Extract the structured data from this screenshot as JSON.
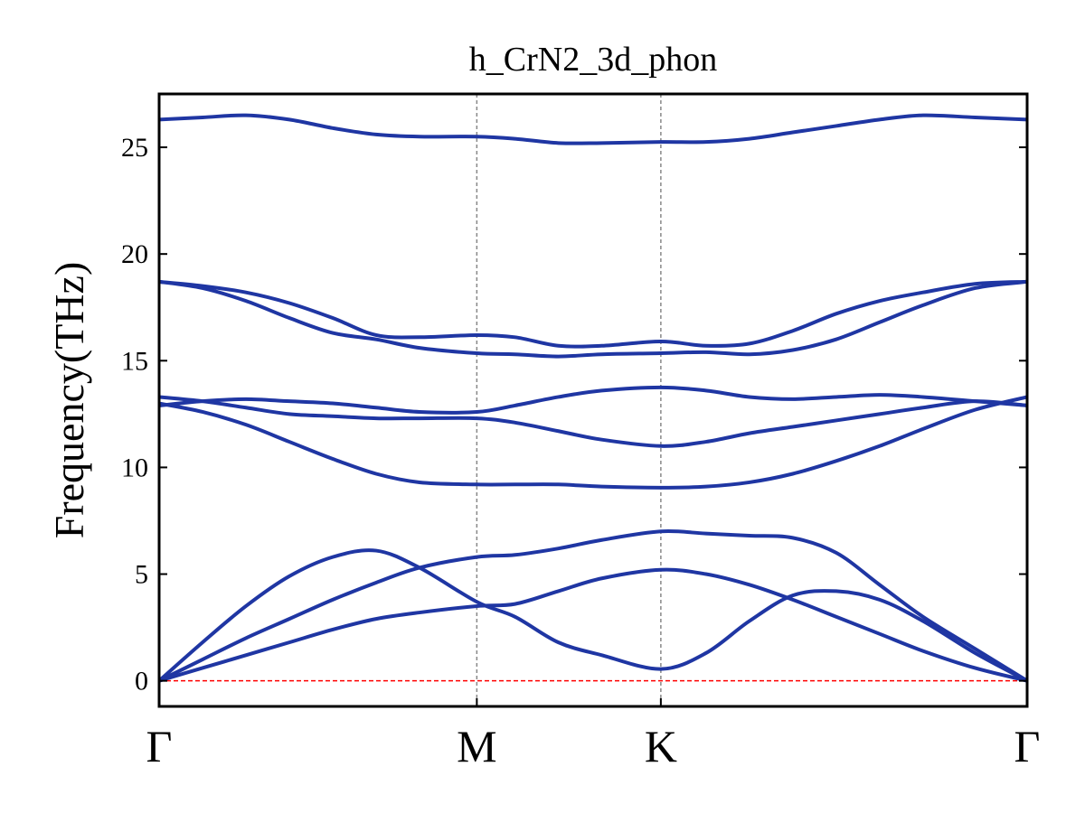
{
  "chart_data": {
    "type": "line",
    "title": "h_CrN2_3d_phon",
    "xlabel": "",
    "ylabel": "Frequency(THz)",
    "ylim": [
      -1.2,
      27.5
    ],
    "xlim": [
      0,
      1
    ],
    "grid": false,
    "legend": "none",
    "colors": {
      "band": "#1f36a3",
      "zero_line": "#ff0000",
      "kpoint_line": "#888888"
    },
    "kpoints": [
      {
        "label": "Γ",
        "x": 0
      },
      {
        "label": "M",
        "x": 0.366
      },
      {
        "label": "K",
        "x": 0.578
      },
      {
        "label": "Γ",
        "x": 1
      }
    ],
    "yticks": [
      0,
      5,
      10,
      15,
      20,
      25
    ],
    "zero_line": 0,
    "x": [
      0,
      0.05,
      0.1,
      0.15,
      0.2,
      0.25,
      0.3,
      0.366,
      0.41,
      0.46,
      0.51,
      0.578,
      0.63,
      0.68,
      0.73,
      0.78,
      0.83,
      0.88,
      0.94,
      1
    ],
    "series": [
      {
        "values": [
          0,
          0.6,
          1.2,
          1.8,
          2.4,
          2.9,
          3.2,
          3.5,
          3.6,
          4.2,
          4.8,
          5.2,
          5.0,
          4.5,
          3.8,
          3.0,
          2.2,
          1.4,
          0.6,
          0
        ]
      },
      {
        "values": [
          0,
          1.0,
          2.0,
          2.9,
          3.8,
          4.6,
          5.3,
          5.8,
          5.9,
          6.2,
          6.6,
          7.0,
          6.9,
          6.8,
          6.7,
          6.0,
          4.5,
          3.0,
          1.5,
          0
        ]
      },
      {
        "values": [
          0,
          1.8,
          3.5,
          4.9,
          5.8,
          6.1,
          5.3,
          3.7,
          3.0,
          1.8,
          1.2,
          0.55,
          1.3,
          2.8,
          4.0,
          4.2,
          3.8,
          2.8,
          1.3,
          0
        ]
      },
      {
        "values": [
          13.0,
          12.6,
          12.0,
          11.2,
          10.4,
          9.7,
          9.3,
          9.2,
          9.2,
          9.2,
          9.1,
          9.05,
          9.1,
          9.3,
          9.7,
          10.3,
          11.0,
          11.8,
          12.7,
          13.3
        ]
      },
      {
        "values": [
          13.3,
          13.1,
          12.8,
          12.5,
          12.4,
          12.3,
          12.3,
          12.3,
          12.1,
          11.7,
          11.3,
          11.0,
          11.2,
          11.6,
          11.9,
          12.2,
          12.5,
          12.8,
          13.1,
          12.9
        ]
      },
      {
        "values": [
          12.9,
          13.1,
          13.2,
          13.1,
          13.0,
          12.8,
          12.6,
          12.6,
          12.9,
          13.3,
          13.6,
          13.75,
          13.6,
          13.3,
          13.2,
          13.3,
          13.4,
          13.3,
          13.1,
          12.9
        ]
      },
      {
        "values": [
          18.7,
          18.4,
          17.8,
          17.0,
          16.3,
          16.0,
          15.6,
          15.35,
          15.3,
          15.2,
          15.3,
          15.35,
          15.4,
          15.3,
          15.5,
          16.0,
          16.8,
          17.6,
          18.4,
          18.7
        ]
      },
      {
        "values": [
          18.7,
          18.5,
          18.2,
          17.7,
          17.0,
          16.2,
          16.1,
          16.2,
          16.1,
          15.7,
          15.7,
          15.9,
          15.7,
          15.8,
          16.4,
          17.2,
          17.8,
          18.2,
          18.6,
          18.7
        ]
      },
      {
        "values": [
          26.3,
          26.4,
          26.5,
          26.3,
          25.9,
          25.6,
          25.5,
          25.5,
          25.4,
          25.2,
          25.2,
          25.25,
          25.25,
          25.4,
          25.7,
          26.0,
          26.3,
          26.5,
          26.4,
          26.3
        ]
      }
    ]
  }
}
